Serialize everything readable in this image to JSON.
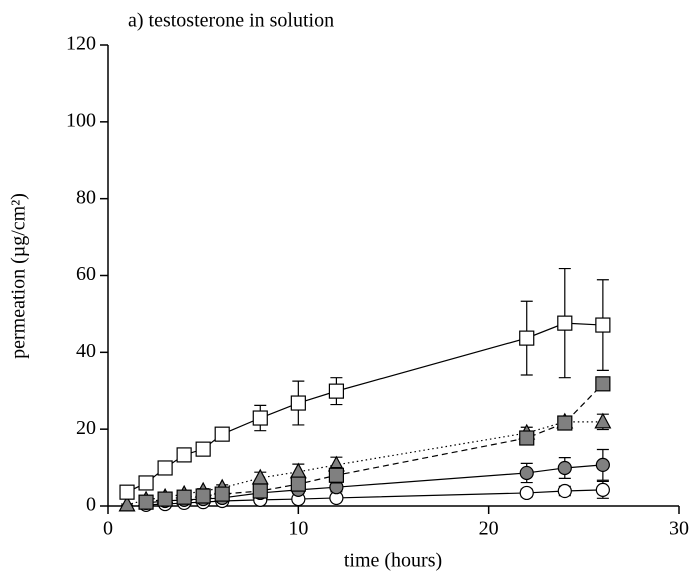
{
  "chart_data": {
    "type": "errorbar-line",
    "title": "a) testosterone in solution",
    "xlabel": "time (hours)",
    "ylabel": "permeation (µg/cm²)",
    "xlim": [
      0,
      30
    ],
    "xticks": [
      0,
      10,
      20,
      30
    ],
    "ylim": [
      0,
      120
    ],
    "yticks": [
      0,
      20,
      40,
      60,
      80,
      100,
      120
    ],
    "grid": false,
    "series": [
      {
        "color": "#ffffff",
        "marker": "circle",
        "line_style": "solid",
        "x": [
          2,
          3,
          4,
          5,
          6,
          8,
          10,
          12,
          22,
          24,
          26
        ],
        "values": [
          0.3,
          0.5,
          0.8,
          1,
          1.3,
          1.6,
          1.8,
          2.1,
          3.4,
          3.9,
          4.2
        ],
        "errors": [
          0.2,
          0.2,
          0.3,
          0.3,
          0.3,
          0.4,
          0.4,
          0.5,
          1,
          1.2,
          2.2
        ]
      },
      {
        "color": "#808080",
        "marker": "circle",
        "line_style": "solid",
        "x": [
          2,
          3,
          4,
          5,
          6,
          8,
          10,
          12,
          22,
          24,
          26
        ],
        "values": [
          0.8,
          1.3,
          1.6,
          1.8,
          2.1,
          3.4,
          4.2,
          4.9,
          8.6,
          9.9,
          10.7
        ],
        "errors": [
          0.3,
          0.3,
          0.4,
          0.4,
          0.5,
          0.8,
          1,
          1.2,
          2.5,
          2.7,
          4
        ]
      },
      {
        "color": "#808080",
        "marker": "triangle",
        "line_style": "dotted",
        "x": [
          1,
          2,
          3,
          4,
          5,
          6,
          8,
          10,
          12,
          22,
          24,
          26
        ],
        "values": [
          0.3,
          1.6,
          2.3,
          3.1,
          3.9,
          4.7,
          7.3,
          8.9,
          10.7,
          19,
          21.9,
          21.9
        ],
        "errors": [
          0.2,
          0.3,
          0.4,
          0.5,
          0.6,
          0.8,
          1.5,
          2,
          2,
          1.5,
          1,
          2
        ]
      },
      {
        "color": "#808080",
        "marker": "square",
        "line_style": "dashed",
        "x": [
          2,
          3,
          4,
          5,
          6,
          8,
          10,
          12,
          22,
          24,
          26
        ],
        "values": [
          1,
          1.8,
          2.3,
          2.6,
          3.1,
          3.9,
          5.7,
          8,
          17.7,
          21.6,
          31.8
        ],
        "errors": [
          0.3,
          0.4,
          0.4,
          0.5,
          0.6,
          0.8,
          1.2,
          2,
          1.5,
          1,
          0.5
        ]
      },
      {
        "color": "#ffffff",
        "marker": "square",
        "line_style": "solid",
        "x": [
          1,
          2,
          3,
          4,
          5,
          6,
          8,
          10,
          12,
          22,
          24,
          26
        ],
        "values": [
          3.6,
          6,
          9.9,
          13.3,
          14.8,
          18.7,
          22.9,
          26.8,
          29.9,
          43.7,
          47.6,
          47.1
        ],
        "errors": [
          0.3,
          0.4,
          0.5,
          0.6,
          0.7,
          0.8,
          3.3,
          5.7,
          3.5,
          9.6,
          14.2,
          11.8
        ]
      }
    ]
  }
}
